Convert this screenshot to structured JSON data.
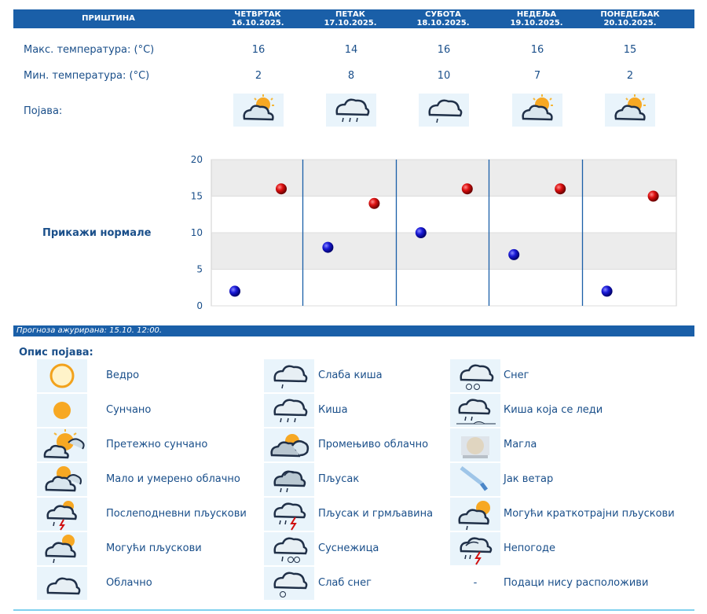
{
  "header": {
    "city": "ПРИШТИНА",
    "days": [
      {
        "name": "ЧЕТВРТАК",
        "date": "16.10.2025."
      },
      {
        "name": "ПЕТАК",
        "date": "17.10.2025."
      },
      {
        "name": "СУБОТА",
        "date": "18.10.2025."
      },
      {
        "name": "НЕДЕЉА",
        "date": "19.10.2025."
      },
      {
        "name": "ПОНЕДЕЉАК",
        "date": "20.10.2025."
      }
    ]
  },
  "rows": {
    "max_label": "Макс. температура: (°C)",
    "min_label": "Мин. температура: (°C)",
    "phenomenon_label": "Појава:",
    "max_values": [
      "16",
      "14",
      "16",
      "16",
      "15"
    ],
    "min_values": [
      "2",
      "8",
      "10",
      "7",
      "2"
    ],
    "phenomenon_icons": [
      "partly-cloudy-sun-icon",
      "rain-icon",
      "light-rain-icon",
      "partly-cloudy-sun-icon",
      "partly-cloudy-sun-icon"
    ]
  },
  "show_normals_label": "Прикажи нормале",
  "chart_data": {
    "type": "scatter",
    "x": [
      "16.10.2025.",
      "17.10.2025.",
      "18.10.2025.",
      "19.10.2025.",
      "20.10.2025."
    ],
    "series": [
      {
        "values": [
          16,
          14,
          16,
          16,
          15
        ],
        "color": "#cc0000"
      },
      {
        "values": [
          2,
          8,
          10,
          7,
          2
        ],
        "color": "#1010c0"
      }
    ],
    "yticks": [
      "0",
      "5",
      "10",
      "15",
      "20"
    ],
    "ylim": [
      0,
      20
    ],
    "grid": true
  },
  "updated_text": "Прогноза ажурирана:  15.10. 12:00.",
  "legend": {
    "title": "Опис појава:",
    "items": [
      {
        "label": "Ведро",
        "icon": "clear-sun-icon"
      },
      {
        "label": "Сунчано",
        "icon": "sunny-icon"
      },
      {
        "label": "Претежно сунчано",
        "icon": "mostly-sunny-icon"
      },
      {
        "label": "Мало и умерено облачно",
        "icon": "partly-cloudy-icon"
      },
      {
        "label": "Послеподневни пљускови",
        "icon": "afternoon-showers-icon"
      },
      {
        "label": "Могући пљускови",
        "icon": "possible-showers-icon"
      },
      {
        "label": "Облачно",
        "icon": "cloudy-icon"
      },
      {
        "label": "Слаба киша",
        "icon": "light-rain-icon"
      },
      {
        "label": "Киша",
        "icon": "rain-icon"
      },
      {
        "label": "Промењиво облачно",
        "icon": "variable-cloudy-icon"
      },
      {
        "label": "Пљусак",
        "icon": "shower-icon"
      },
      {
        "label": "Пљусак и грмљавина",
        "icon": "thunderstorm-icon"
      },
      {
        "label": "Суснежица",
        "icon": "sleet-icon"
      },
      {
        "label": "Слаб снег",
        "icon": "light-snow-icon"
      },
      {
        "label": "Снег",
        "icon": "snow-icon"
      },
      {
        "label": "Киша која се леди",
        "icon": "freezing-rain-icon"
      },
      {
        "label": "Магла",
        "icon": "fog-icon"
      },
      {
        "label": "Јак ветар",
        "icon": "strong-wind-icon"
      },
      {
        "label": "Могући краткотрајни пљускови",
        "icon": "brief-showers-icon"
      },
      {
        "label": "Непогоде",
        "icon": "severe-weather-icon"
      },
      {
        "label": "Подаци нису расположиви",
        "icon": "-"
      }
    ]
  }
}
